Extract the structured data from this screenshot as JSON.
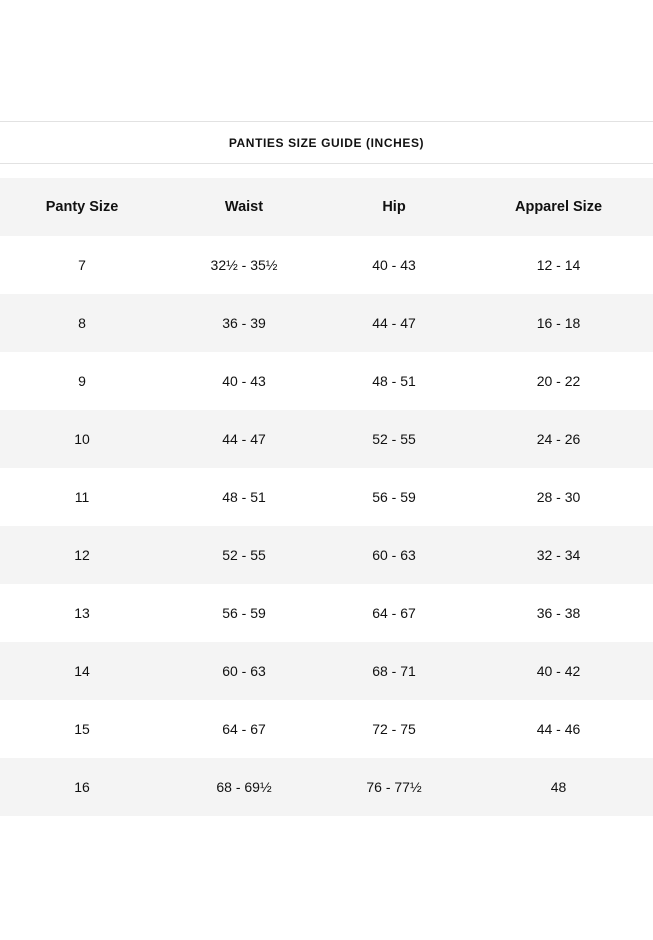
{
  "title": "PANTIES SIZE GUIDE (INCHES)",
  "table": {
    "headers": [
      "Panty Size",
      "Waist",
      "Hip",
      "Apparel Size"
    ],
    "rows": [
      [
        "7",
        "32½ - 35½",
        "40 - 43",
        "12 - 14"
      ],
      [
        "8",
        "36 - 39",
        "44 - 47",
        "16 - 18"
      ],
      [
        "9",
        "40 - 43",
        "48 - 51",
        "20 - 22"
      ],
      [
        "10",
        "44 - 47",
        "52 - 55",
        "24 - 26"
      ],
      [
        "11",
        "48 - 51",
        "56 - 59",
        "28 - 30"
      ],
      [
        "12",
        "52 - 55",
        "60 - 63",
        "32 - 34"
      ],
      [
        "13",
        "56 - 59",
        "64 - 67",
        "36 - 38"
      ],
      [
        "14",
        "60 - 63",
        "68 - 71",
        "40 - 42"
      ],
      [
        "15",
        "64 - 67",
        "72 - 75",
        "44 - 46"
      ],
      [
        "16",
        "68 - 69½",
        "76 - 77½",
        "48"
      ]
    ]
  }
}
